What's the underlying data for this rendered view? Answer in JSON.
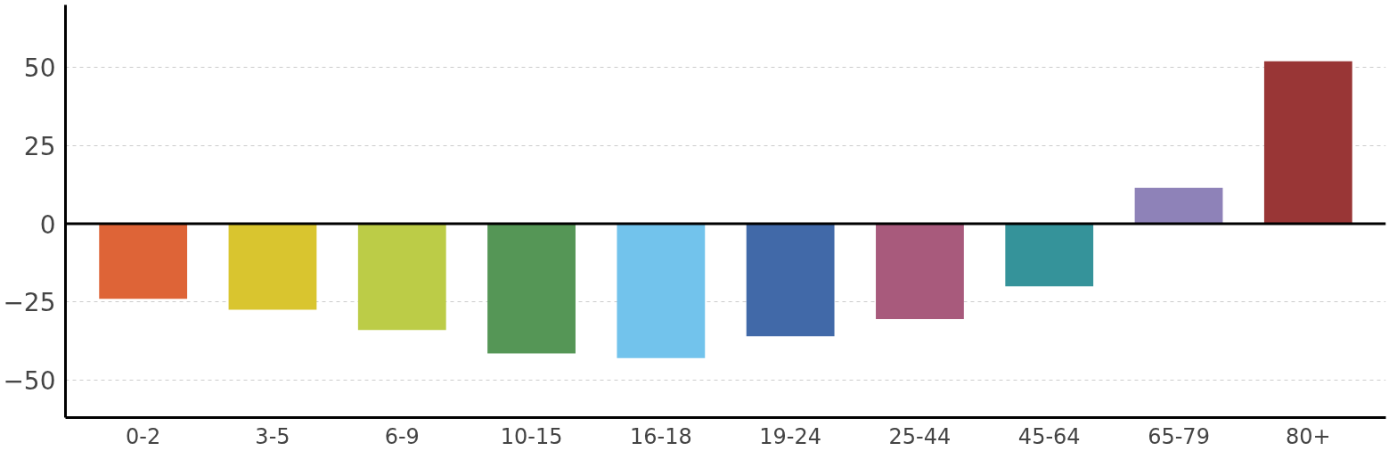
{
  "chart_data": {
    "type": "bar",
    "categories": [
      "0-2",
      "3-5",
      "6-9",
      "10-15",
      "16-18",
      "19-24",
      "25-44",
      "45-64",
      "65-79",
      "80+"
    ],
    "values": [
      -24,
      -27.5,
      -34,
      -41.5,
      -43,
      -36,
      -30.5,
      -20,
      11.5,
      52
    ],
    "colors": [
      "#de6437",
      "#d9c52f",
      "#bccc47",
      "#559656",
      "#72c3ec",
      "#4169a8",
      "#a85a7c",
      "#35939a",
      "#8e82b8",
      "#993636"
    ],
    "ylim": [
      -62,
      70
    ],
    "yticks": [
      -50,
      -25,
      0,
      25,
      50
    ],
    "grid": "y",
    "ref_lines": [
      {
        "axis": "y",
        "value": 0,
        "color": "#000000"
      }
    ]
  }
}
